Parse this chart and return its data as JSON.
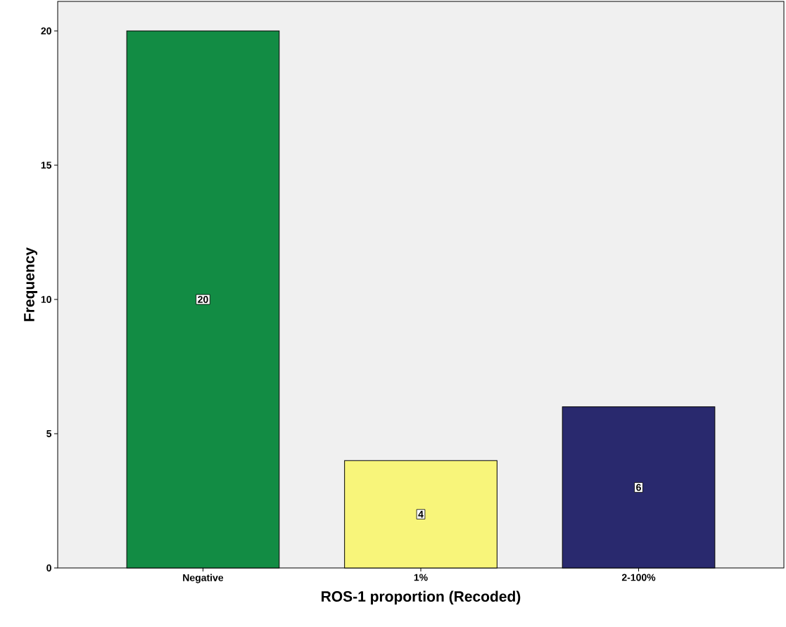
{
  "chart_data": {
    "type": "bar",
    "xlabel": "ROS-1 proportion (Recoded)",
    "ylabel": "Frequency",
    "categories": [
      "Negative",
      "1%",
      "2-100%"
    ],
    "values": [
      20,
      4,
      6
    ],
    "colors": [
      "#128c44",
      "#f8f57a",
      "#29296e"
    ],
    "ylim": [
      0,
      21.1
    ],
    "yticks": [
      0,
      5,
      10,
      15,
      20
    ],
    "data_labels": true
  }
}
